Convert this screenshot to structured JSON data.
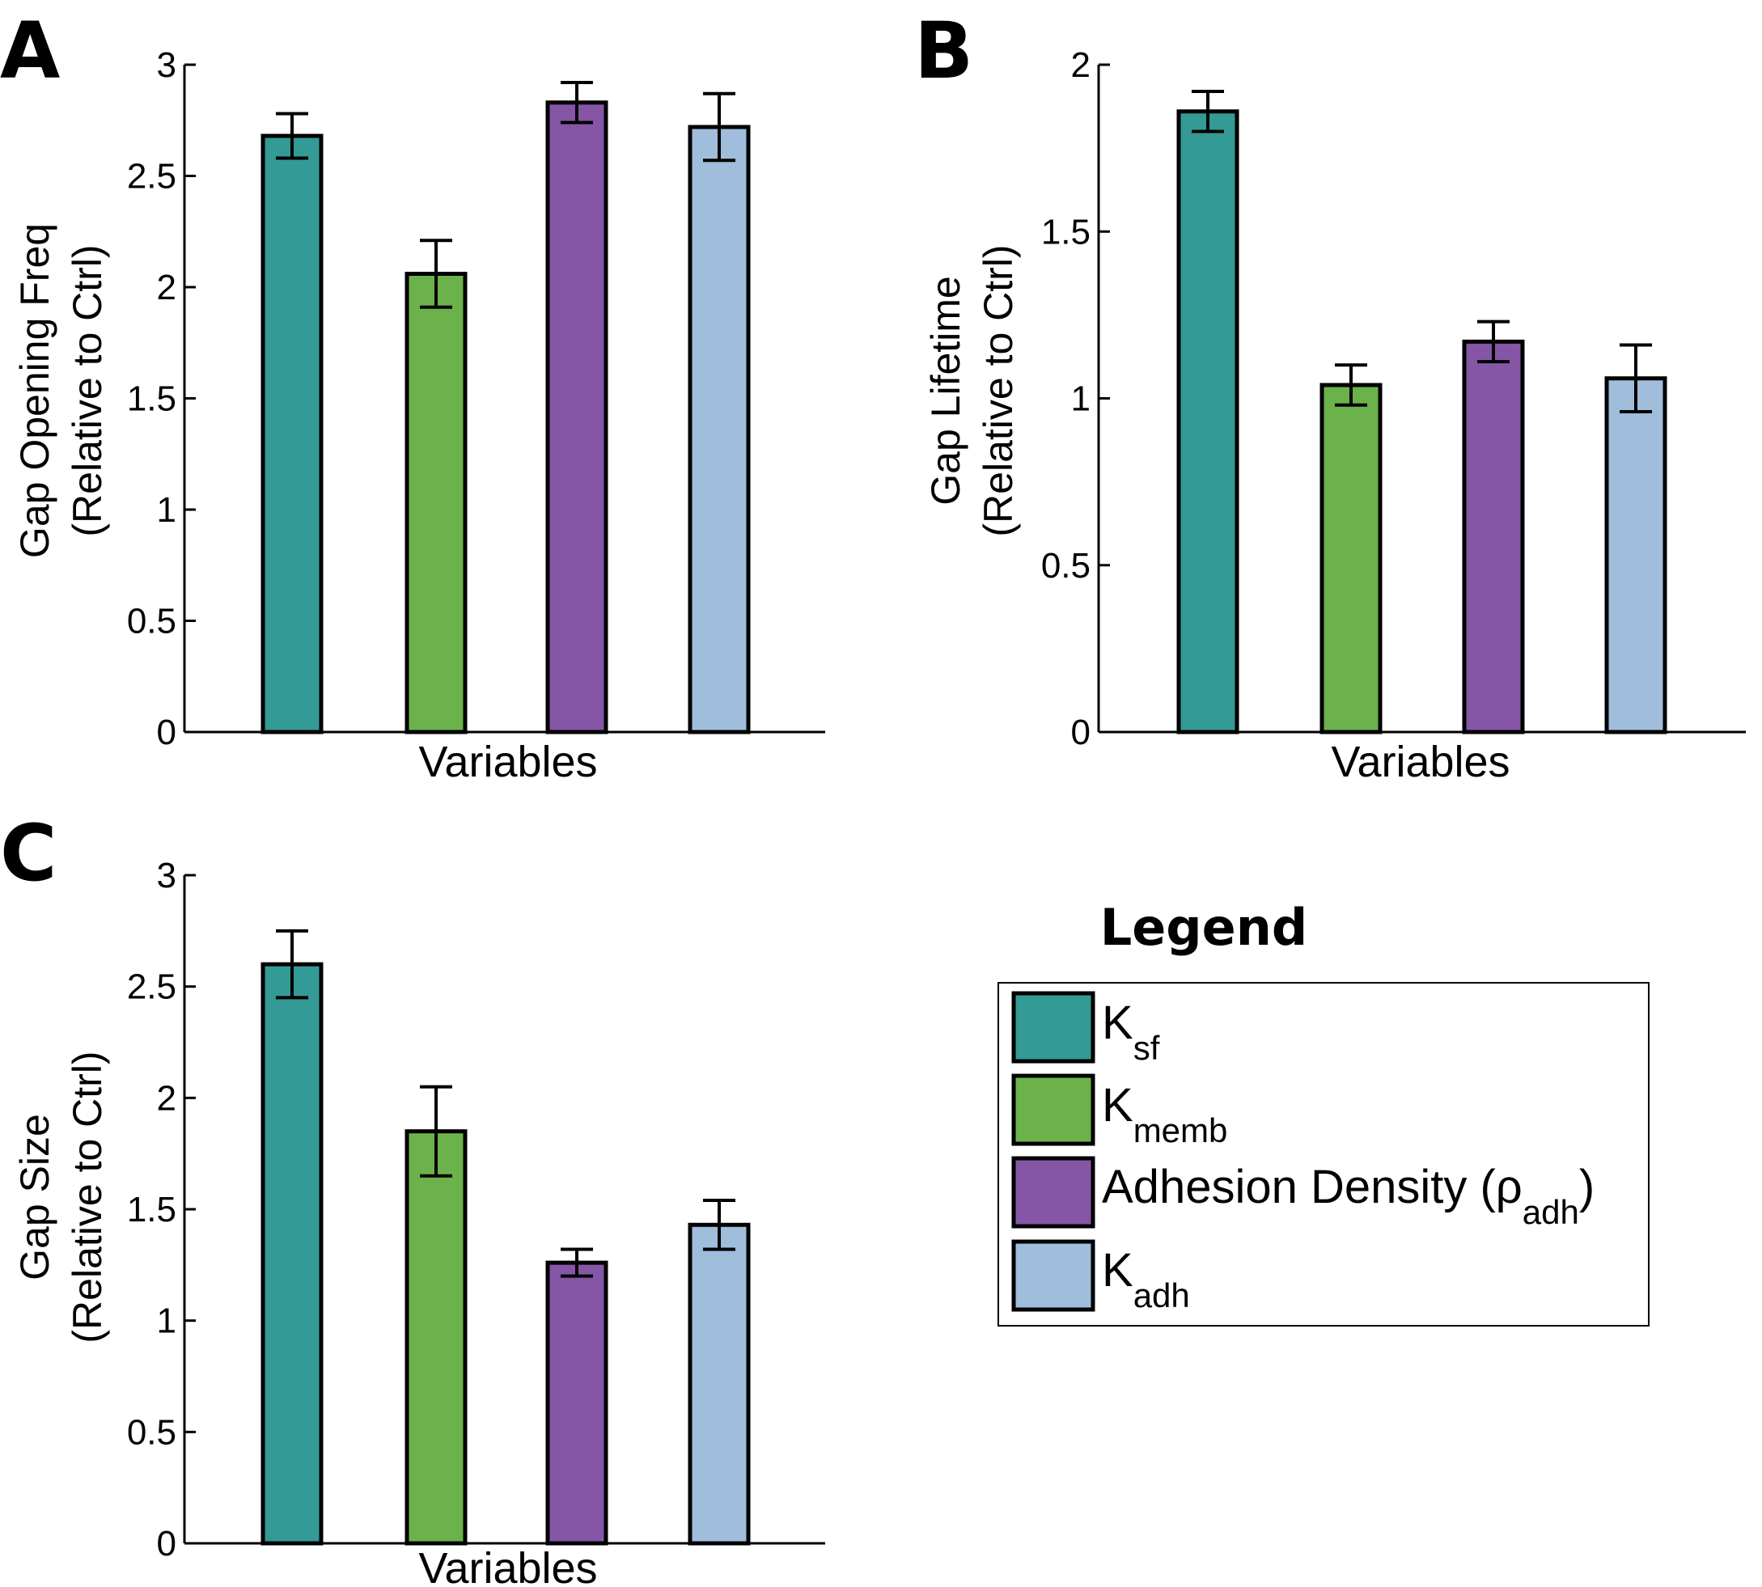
{
  "colors": [
    "#339a96",
    "#6cb24b",
    "#8656a6",
    "#a0bddc"
  ],
  "legend": {
    "title": "Legend",
    "entries": [
      {
        "main": "K",
        "sub": "sf",
        "after": ""
      },
      {
        "main": "K",
        "sub": "memb",
        "after": ""
      },
      {
        "main": "Adhesion Density (ρ",
        "sub": "adh",
        "after": ")"
      },
      {
        "main": "K",
        "sub": "adh",
        "after": ""
      }
    ]
  },
  "chart_data": [
    {
      "panel": "A",
      "type": "bar",
      "title": "",
      "xlabel": "Variables",
      "ylabel": [
        "Gap Opening Freq",
        "(Relative to Ctrl)"
      ],
      "ylim": [
        0,
        3
      ],
      "yticks": [
        0,
        0.5,
        1,
        1.5,
        2,
        2.5,
        3
      ],
      "yticklabels": [
        "0",
        "0.5",
        "1",
        "1.5",
        "2",
        "2.5",
        "3"
      ],
      "categories": [
        "K_sf",
        "K_memb",
        "Adhesion Density (ρ_adh)",
        "K_adh"
      ],
      "values": [
        2.68,
        2.06,
        2.83,
        2.72
      ],
      "errors": [
        0.1,
        0.15,
        0.09,
        0.15
      ]
    },
    {
      "panel": "B",
      "type": "bar",
      "title": "",
      "xlabel": "Variables",
      "ylabel": [
        "Gap Lifetime",
        "(Relative to Ctrl)"
      ],
      "ylim": [
        0,
        2
      ],
      "yticks": [
        0,
        0.5,
        1,
        1.5,
        2
      ],
      "yticklabels": [
        "0",
        "0.5",
        "1",
        "1.5",
        "2"
      ],
      "categories": [
        "K_sf",
        "K_memb",
        "Adhesion Density (ρ_adh)",
        "K_adh"
      ],
      "values": [
        1.86,
        1.04,
        1.17,
        1.06
      ],
      "errors": [
        0.06,
        0.06,
        0.06,
        0.1
      ]
    },
    {
      "panel": "C",
      "type": "bar",
      "title": "",
      "xlabel": "Variables",
      "ylabel": [
        "Gap Size",
        "(Relative to Ctrl)"
      ],
      "ylim": [
        0,
        3
      ],
      "yticks": [
        0,
        0.5,
        1,
        1.5,
        2,
        2.5,
        3
      ],
      "yticklabels": [
        "0",
        "0.5",
        "1",
        "1.5",
        "2",
        "2.5",
        "3"
      ],
      "categories": [
        "K_sf",
        "K_memb",
        "Adhesion Density (ρ_adh)",
        "K_adh"
      ],
      "values": [
        2.6,
        1.85,
        1.26,
        1.43
      ],
      "errors": [
        0.15,
        0.2,
        0.06,
        0.11
      ]
    }
  ]
}
